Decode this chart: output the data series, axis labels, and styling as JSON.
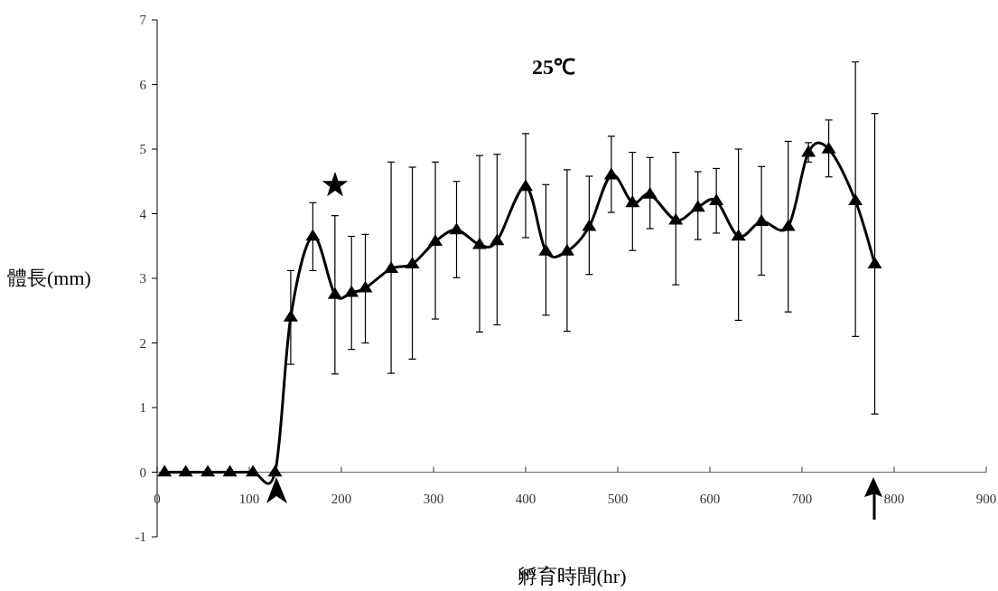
{
  "chart_data": {
    "type": "line",
    "title": "25℃",
    "xlabel": "孵育時間(hr)",
    "ylabel": "體長(mm)",
    "x": [
      8,
      31,
      55,
      79,
      104,
      128,
      145,
      169,
      193,
      211,
      226,
      254,
      277,
      302,
      325,
      350,
      369,
      400,
      422,
      445,
      469,
      493,
      516,
      535,
      563,
      587,
      607,
      631,
      656,
      685,
      707,
      729,
      758,
      779
    ],
    "series": [
      {
        "color": "#000000",
        "values": [
          0,
          0,
          0,
          0,
          0,
          0,
          2.4,
          3.65,
          2.75,
          2.78,
          2.85,
          3.15,
          3.22,
          3.57,
          3.75,
          3.52,
          3.58,
          4.42,
          3.42,
          3.42,
          3.8,
          4.6,
          4.17,
          4.3,
          3.9,
          4.1,
          4.2,
          3.65,
          3.88,
          3.8,
          4.95,
          5.0,
          4.2,
          3.22
        ],
        "errors": [
          null,
          null,
          null,
          null,
          null,
          null,
          [
            1.67,
            3.12
          ],
          [
            3.12,
            4.17
          ],
          [
            1.52,
            3.97
          ],
          [
            1.9,
            3.65
          ],
          [
            2.0,
            3.68
          ],
          [
            1.53,
            4.8
          ],
          [
            1.75,
            4.72
          ],
          [
            2.37,
            4.8
          ],
          [
            3.01,
            4.5
          ],
          [
            2.17,
            4.9
          ],
          [
            2.28,
            4.92
          ],
          [
            3.63,
            5.24
          ],
          [
            2.43,
            4.45
          ],
          [
            2.18,
            4.68
          ],
          [
            3.06,
            4.58
          ],
          [
            4.02,
            5.2
          ],
          [
            3.43,
            4.95
          ],
          [
            3.77,
            4.87
          ],
          [
            2.9,
            4.95
          ],
          [
            3.6,
            4.65
          ],
          [
            3.7,
            4.7
          ],
          [
            2.35,
            5.0
          ],
          [
            3.05,
            4.73
          ],
          [
            2.48,
            5.12
          ],
          [
            4.8,
            5.1
          ],
          [
            4.57,
            5.45
          ],
          [
            2.1,
            6.35
          ],
          [
            0.9,
            5.55
          ]
        ]
      }
    ],
    "xlim": [
      0,
      900
    ],
    "xticks": [
      0,
      100,
      200,
      300,
      400,
      500,
      600,
      700,
      800,
      900
    ],
    "ylim": [
      -1,
      7
    ],
    "yticks": [
      -1,
      0,
      1,
      2,
      3,
      4,
      5,
      6,
      7
    ],
    "grid": false,
    "marker": "triangle",
    "line_style": "solid"
  }
}
